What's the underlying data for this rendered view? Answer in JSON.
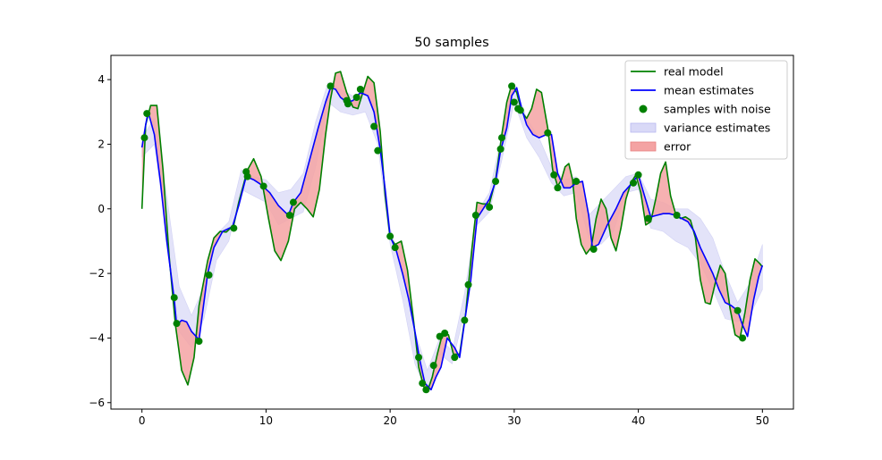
{
  "chart_data": {
    "type": "line",
    "title": "50 samples",
    "xlabel": "",
    "ylabel": "",
    "xlim": [
      -2.5,
      52.5
    ],
    "ylim": [
      -6.2,
      4.75
    ],
    "xticks": [
      0,
      10,
      20,
      30,
      40,
      50
    ],
    "yticks": [
      -6,
      -4,
      -2,
      0,
      2,
      4
    ],
    "grid": false,
    "legend_position": "top-right",
    "colors": {
      "real_model": "#008000",
      "mean_estimates": "#0000ff",
      "samples": "#008000",
      "variance": "#d9d9f7",
      "error": "#f4a3a3"
    },
    "legend": [
      {
        "label": "real model",
        "kind": "line",
        "color": "#008000"
      },
      {
        "label": "mean estimates",
        "kind": "line",
        "color": "#0000ff"
      },
      {
        "label": "samples with noise",
        "kind": "marker",
        "color": "#008000"
      },
      {
        "label": "variance estimates",
        "kind": "patch",
        "color": "#d9d9f7"
      },
      {
        "label": "error",
        "kind": "patch",
        "color": "#f4a3a3"
      }
    ],
    "real_model": {
      "x": [
        0,
        0.3,
        0.7,
        1.2,
        1.7,
        2.2,
        2.7,
        3.2,
        3.7,
        4.2,
        4.6,
        5.3,
        5.8,
        6.3,
        6.8,
        7.4,
        7.8,
        8.5,
        9.0,
        9.6,
        10.2,
        10.7,
        11.2,
        11.8,
        12.3,
        12.8,
        13.3,
        13.8,
        14.3,
        14.8,
        15.2,
        15.6,
        16.0,
        16.5,
        17.0,
        17.4,
        17.8,
        18.2,
        18.7,
        19.2,
        19.6,
        20.0,
        20.4,
        20.9,
        21.4,
        21.9,
        22.3,
        22.7,
        23.0,
        23.4,
        23.8,
        24.2,
        24.7,
        25.1,
        25.6,
        26.1,
        26.6,
        27.0,
        27.5,
        28.0,
        28.5,
        29.0,
        29.4,
        29.8,
        30.2,
        30.6,
        31.0,
        31.4,
        31.8,
        32.2,
        32.7,
        33.1,
        33.5,
        33.8,
        34.1,
        34.4,
        34.7,
        35.0,
        35.4,
        35.8,
        36.2,
        36.6,
        37.0,
        37.4,
        37.8,
        38.2,
        38.6,
        39.0,
        39.4,
        39.8,
        40.2,
        40.6,
        41.0,
        41.4,
        41.8,
        42.2,
        42.6,
        43.0,
        43.4,
        43.8,
        44.2,
        44.6,
        45.0,
        45.4,
        45.8,
        46.2,
        46.6,
        47.0,
        47.4,
        47.8,
        48.2,
        48.6,
        49.0,
        49.4,
        49.8,
        50.0
      ],
      "y": [
        0.0,
        2.6,
        3.2,
        3.2,
        1.2,
        -1.5,
        -3.6,
        -5.0,
        -5.45,
        -4.6,
        -3.0,
        -1.6,
        -0.9,
        -0.7,
        -0.72,
        -0.5,
        0.2,
        1.2,
        1.55,
        1.0,
        -0.3,
        -1.3,
        -1.6,
        -1.0,
        0.0,
        0.2,
        0.0,
        -0.25,
        0.6,
        2.3,
        3.4,
        4.2,
        4.25,
        3.6,
        3.15,
        3.1,
        3.6,
        4.1,
        3.9,
        2.4,
        0.4,
        -0.9,
        -1.1,
        -1.0,
        -1.9,
        -3.5,
        -4.9,
        -5.5,
        -5.65,
        -5.2,
        -4.5,
        -3.9,
        -3.9,
        -4.5,
        -4.5,
        -3.2,
        -1.2,
        0.2,
        0.15,
        0.15,
        0.9,
        2.3,
        3.3,
        3.85,
        3.6,
        3.0,
        2.8,
        3.1,
        3.7,
        3.6,
        2.5,
        1.2,
        0.7,
        0.9,
        1.3,
        1.4,
        0.9,
        -0.3,
        -1.1,
        -1.4,
        -1.2,
        -0.3,
        0.3,
        0.0,
        -0.9,
        -1.3,
        -0.6,
        0.3,
        0.8,
        1.05,
        0.5,
        -0.5,
        -0.4,
        0.3,
        1.1,
        1.45,
        0.4,
        -0.15,
        -0.3,
        -0.25,
        -0.35,
        -0.9,
        -2.2,
        -2.9,
        -2.95,
        -2.3,
        -1.75,
        -2.0,
        -3.1,
        -3.9,
        -4.0,
        -3.2,
        -2.2,
        -1.55,
        -1.7,
        -1.8
      ]
    },
    "mean_estimates": {
      "x": [
        0,
        0.3,
        0.5,
        1.0,
        1.5,
        2.0,
        2.6,
        2.8,
        3.2,
        3.6,
        4.0,
        4.6,
        5.3,
        5.8,
        6.5,
        7.3,
        7.8,
        8.4,
        9.0,
        9.6,
        10.3,
        11.0,
        11.8,
        12.2,
        12.8,
        13.5,
        14.2,
        14.8,
        15.2,
        15.6,
        16.0,
        16.5,
        17.0,
        17.6,
        18.2,
        18.7,
        19.2,
        19.6,
        20.0,
        20.5,
        21.0,
        21.5,
        22.0,
        22.4,
        22.8,
        23.3,
        23.7,
        24.1,
        24.6,
        25.2,
        25.6,
        26.0,
        26.5,
        27.0,
        27.5,
        28.0,
        28.5,
        28.9,
        29.4,
        29.8,
        30.2,
        30.6,
        31.0,
        31.5,
        32.0,
        32.6,
        33.0,
        33.5,
        34.0,
        34.5,
        35.0,
        35.5,
        36.0,
        36.3,
        36.8,
        37.5,
        38.2,
        38.8,
        39.5,
        40.0,
        40.5,
        41.0,
        41.5,
        42.0,
        42.5,
        43.0,
        43.5,
        44.0,
        44.5,
        45.0,
        45.5,
        46.0,
        46.5,
        47.0,
        47.5,
        48.0,
        48.4,
        48.8,
        49.3,
        49.7,
        50.0
      ],
      "y": [
        1.9,
        2.6,
        3.0,
        2.3,
        0.8,
        -1.0,
        -2.8,
        -3.6,
        -3.45,
        -3.5,
        -3.8,
        -4.05,
        -2.0,
        -1.2,
        -0.7,
        -0.55,
        0.1,
        1.0,
        0.9,
        0.75,
        0.5,
        0.1,
        -0.2,
        0.2,
        0.5,
        1.5,
        2.5,
        3.3,
        3.75,
        3.7,
        3.45,
        3.3,
        3.35,
        3.6,
        3.5,
        3.0,
        1.85,
        0.6,
        -0.85,
        -1.3,
        -2.0,
        -2.8,
        -3.8,
        -4.7,
        -5.4,
        -5.6,
        -5.2,
        -4.9,
        -4.0,
        -4.3,
        -4.6,
        -3.5,
        -2.2,
        -0.3,
        0.0,
        0.3,
        0.85,
        1.8,
        2.5,
        3.5,
        3.75,
        3.1,
        2.6,
        2.3,
        2.2,
        2.3,
        2.3,
        1.1,
        0.65,
        0.65,
        0.8,
        0.85,
        -0.2,
        -1.2,
        -1.1,
        -0.5,
        0.0,
        0.5,
        0.8,
        1.05,
        0.4,
        -0.25,
        -0.2,
        -0.15,
        -0.15,
        -0.2,
        -0.3,
        -0.4,
        -0.7,
        -1.2,
        -1.6,
        -2.0,
        -2.5,
        -2.9,
        -3.0,
        -3.15,
        -3.6,
        -3.95,
        -2.8,
        -2.1,
        -1.75
      ]
    },
    "variance_estimates": {
      "x": [
        0,
        1,
        2,
        3,
        4,
        5,
        6,
        7,
        8,
        9,
        10,
        11,
        12,
        13,
        14,
        15,
        16,
        17,
        18,
        19,
        20,
        21,
        22,
        23,
        24,
        25,
        26,
        27,
        28,
        29,
        30,
        31,
        32,
        33,
        34,
        35,
        36,
        37,
        38,
        39,
        40,
        41,
        42,
        43,
        44,
        45,
        46,
        47,
        48,
        49,
        50
      ],
      "upper": [
        2.2,
        2.8,
        0.4,
        -2.4,
        -3.3,
        -2.4,
        -0.8,
        -0.4,
        1.2,
        1.0,
        0.9,
        0.5,
        0.6,
        1.1,
        2.7,
        3.9,
        3.7,
        3.5,
        3.6,
        2.7,
        -0.6,
        -1.9,
        -3.8,
        -5.0,
        -4.0,
        -4.4,
        -2.6,
        -0.1,
        0.5,
        2.3,
        3.9,
        2.8,
        2.2,
        1.3,
        0.9,
        1.0,
        -0.2,
        0.2,
        0.6,
        1.0,
        1.1,
        0.3,
        0.2,
        0.0,
        0.0,
        -0.3,
        -0.9,
        -2.0,
        -2.9,
        -2.3,
        -1.1
      ],
      "lower": [
        1.6,
        2.0,
        -0.8,
        -3.8,
        -4.3,
        -3.4,
        -1.6,
        -1.0,
        0.6,
        0.4,
        0.2,
        -0.5,
        -0.3,
        -0.1,
        1.3,
        3.3,
        3.0,
        2.9,
        3.0,
        2.0,
        -1.1,
        -2.8,
        -4.8,
        -5.7,
        -4.5,
        -4.8,
        -3.2,
        -0.5,
        -0.1,
        1.5,
        3.3,
        2.2,
        1.6,
        0.8,
        0.4,
        0.5,
        -0.9,
        -1.1,
        -0.7,
        0.5,
        0.6,
        -0.6,
        -0.7,
        -1.0,
        -1.2,
        -1.7,
        -2.5,
        -3.4,
        -3.5,
        -3.3,
        -2.5
      ]
    },
    "samples": {
      "x": [
        0.2,
        0.4,
        2.6,
        2.8,
        4.6,
        5.4,
        7.4,
        8.4,
        8.5,
        9.8,
        11.9,
        12.2,
        15.2,
        16.5,
        16.6,
        17.3,
        17.6,
        18.7,
        19.0,
        20.0,
        20.4,
        22.3,
        22.6,
        22.9,
        23.5,
        24.0,
        24.4,
        25.2,
        26.0,
        26.3,
        26.9,
        28.0,
        28.5,
        28.9,
        29.0,
        29.8,
        30.0,
        30.3,
        30.5,
        32.7,
        33.2,
        33.5,
        35.0,
        36.4,
        39.6,
        40.0,
        40.8,
        43.1,
        48.0,
        48.4
      ],
      "y": [
        2.2,
        2.95,
        -2.75,
        -3.55,
        -4.1,
        -2.05,
        -0.6,
        1.15,
        1.0,
        0.7,
        -0.2,
        0.2,
        3.8,
        3.35,
        3.25,
        3.45,
        3.7,
        2.55,
        1.8,
        -0.85,
        -1.2,
        -4.6,
        -5.4,
        -5.6,
        -4.85,
        -3.95,
        -3.85,
        -4.6,
        -3.45,
        -2.35,
        -0.2,
        0.05,
        0.85,
        1.85,
        2.2,
        3.8,
        3.3,
        3.1,
        3.05,
        2.35,
        1.05,
        0.65,
        0.85,
        -1.25,
        0.8,
        1.05,
        -0.3,
        -0.2,
        -3.15,
        -4.0
      ]
    }
  }
}
